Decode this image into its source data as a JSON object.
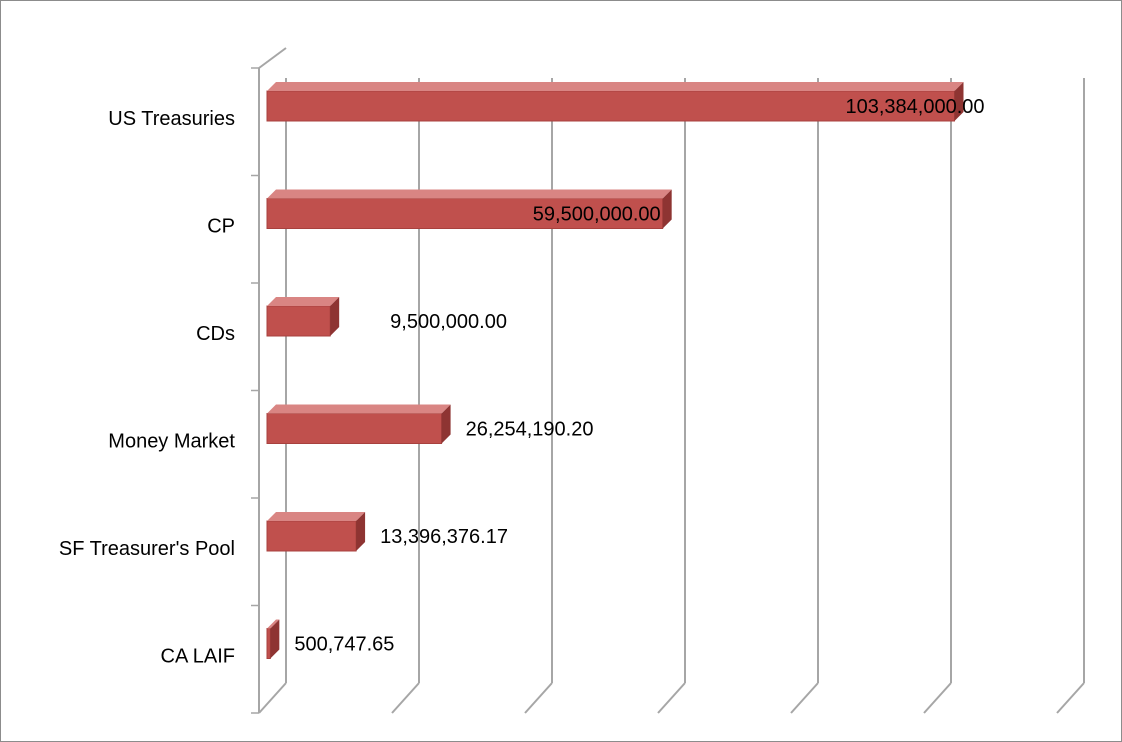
{
  "chart_data": {
    "type": "bar",
    "orientation": "horizontal",
    "style": "3d",
    "categories": [
      "US Treasuries",
      "CP",
      "CDs",
      "Money Market",
      "SF Treasurer's Pool",
      "CA LAIF"
    ],
    "values": [
      103384000.0,
      59500000.0,
      9500000.0,
      26254190.2,
      13396376.17,
      500747.65
    ],
    "data_labels": [
      "103,384,000.00",
      "59,500,000.00",
      "9,500,000.00",
      "26,254,190.20",
      "13,396,376.17",
      "500,747.65"
    ],
    "xlim": [
      0,
      120000000
    ],
    "x_tick_step": 20000000,
    "x_tick_labels_shown": false,
    "grid": true,
    "legend": "none",
    "title": "",
    "xlabel": "",
    "ylabel": "",
    "colors": {
      "bar_front": "#c0504d",
      "bar_top": "#d98583",
      "bar_side": "#8e3432",
      "gridline": "#a6a6a6",
      "border": "#8c8c8c"
    }
  }
}
